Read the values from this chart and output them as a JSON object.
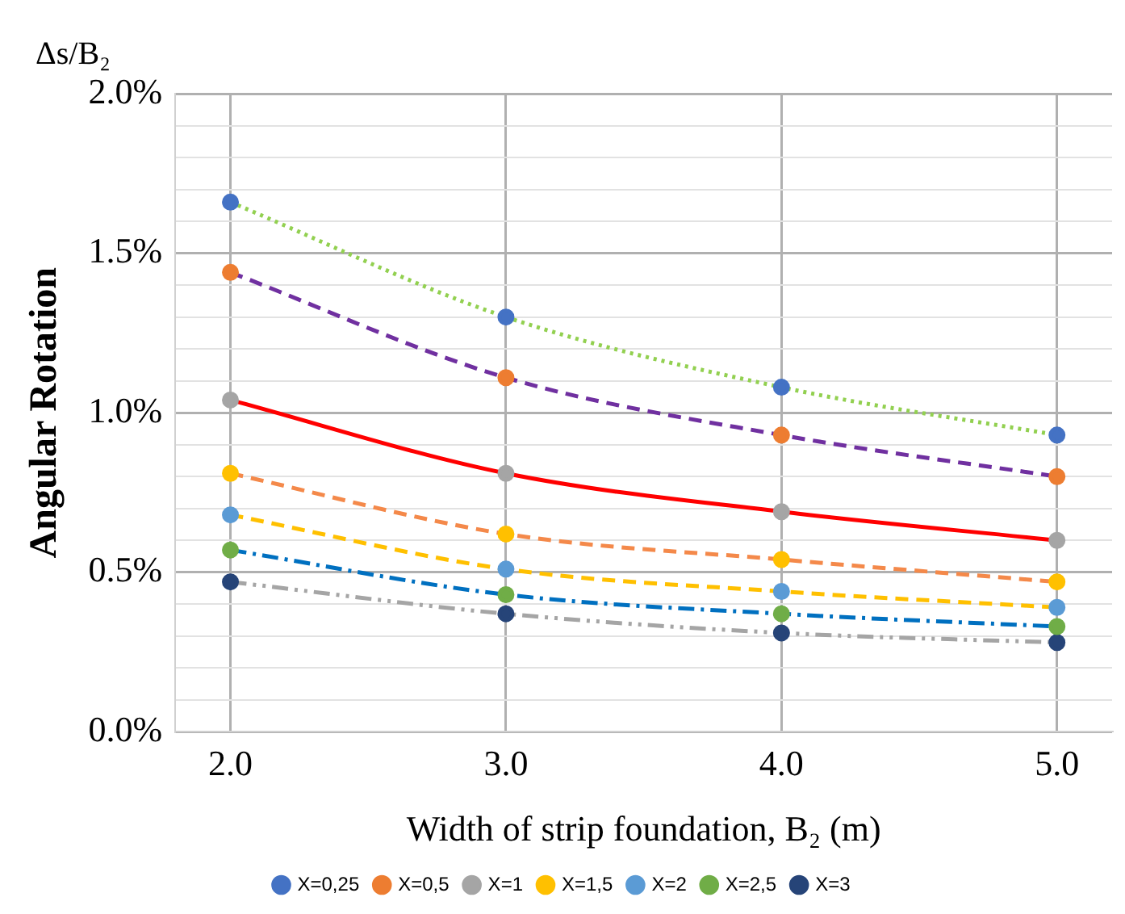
{
  "chart_data": {
    "type": "line",
    "xlabel": "Width of strip foundation, B₂ (m)",
    "ylabel": "Angular Rotation",
    "annotations": [
      "Δs/B₂"
    ],
    "x": [
      2,
      3,
      4,
      5
    ],
    "xlim": [
      1.8,
      5.2
    ],
    "xticks": [
      {
        "value": 2,
        "label": "2.0"
      },
      {
        "value": 3,
        "label": "3.0"
      },
      {
        "value": 4,
        "label": "4.0"
      },
      {
        "value": 5,
        "label": "5.0"
      }
    ],
    "ylim": [
      0,
      2
    ],
    "yticks": [
      {
        "value": 0,
        "label": "0.0%"
      },
      {
        "value": 0.1,
        "label": null
      },
      {
        "value": 0.2,
        "label": null
      },
      {
        "value": 0.3,
        "label": null
      },
      {
        "value": 0.4,
        "label": null
      },
      {
        "value": 0.5,
        "label": "0.5%"
      },
      {
        "value": 0.6,
        "label": null
      },
      {
        "value": 0.7,
        "label": null
      },
      {
        "value": 0.8,
        "label": null
      },
      {
        "value": 0.9,
        "label": null
      },
      {
        "value": 1,
        "label": "1.0%"
      },
      {
        "value": 1.1,
        "label": null
      },
      {
        "value": 1.2,
        "label": null
      },
      {
        "value": 1.3,
        "label": null
      },
      {
        "value": 1.4,
        "label": null
      },
      {
        "value": 1.5,
        "label": "1.5%"
      },
      {
        "value": 1.6,
        "label": null
      },
      {
        "value": 1.7,
        "label": null
      },
      {
        "value": 1.8,
        "label": null
      },
      {
        "value": 1.9,
        "label": null
      },
      {
        "value": 2,
        "label": "2.0%"
      }
    ],
    "grid": true,
    "legend": "bottom",
    "marker": "circle",
    "series": [
      {
        "name": "X=0,25",
        "color": "#92d050",
        "colors": [
          "#4472c4",
          "#4472c4",
          "#4472c4",
          "#4472c4"
        ],
        "line_style": "dotted",
        "values": [
          1.66,
          1.3,
          1.08,
          0.93
        ]
      },
      {
        "name": "X=0,5",
        "color": "#7030a0",
        "colors": [
          "#ed7d31",
          "#ed7d31",
          "#ed7d31",
          "#ed7d31"
        ],
        "line_style": "dashed",
        "values": [
          1.44,
          1.11,
          0.93,
          0.8
        ]
      },
      {
        "name": "X=1",
        "color": "#ff0000",
        "colors": [
          "#a5a5a5",
          "#a5a5a5",
          "#a5a5a5",
          "#a5a5a5"
        ],
        "line_style": "solid",
        "values": [
          1.04,
          0.81,
          0.69,
          0.6
        ]
      },
      {
        "name": "X=1,5",
        "color": "#f4894a",
        "colors": [
          "#ffc000",
          "#ffc000",
          "#ffc000",
          "#ffc000"
        ],
        "line_style": "dashed",
        "values": [
          0.81,
          0.62,
          0.54,
          0.47
        ]
      },
      {
        "name": "X=2",
        "color": "#ffc000",
        "colors": [
          "#5b9bd5",
          "#5b9bd5",
          "#5b9bd5",
          "#5b9bd5"
        ],
        "line_style": "dashed",
        "values": [
          0.68,
          0.51,
          0.44,
          0.39
        ]
      },
      {
        "name": "X=2,5",
        "color": "#0070c0",
        "colors": [
          "#70ad47",
          "#70ad47",
          "#70ad47",
          "#70ad47"
        ],
        "line_style": "dashdot",
        "values": [
          0.57,
          0.43,
          0.37,
          0.33
        ]
      },
      {
        "name": "X=3",
        "color": "#a5a5a5",
        "colors": [
          "#264478",
          "#264478",
          "#264478",
          "#264478"
        ],
        "line_style": "dashdotdot",
        "values": [
          0.47,
          0.37,
          0.31,
          0.28
        ]
      }
    ]
  }
}
